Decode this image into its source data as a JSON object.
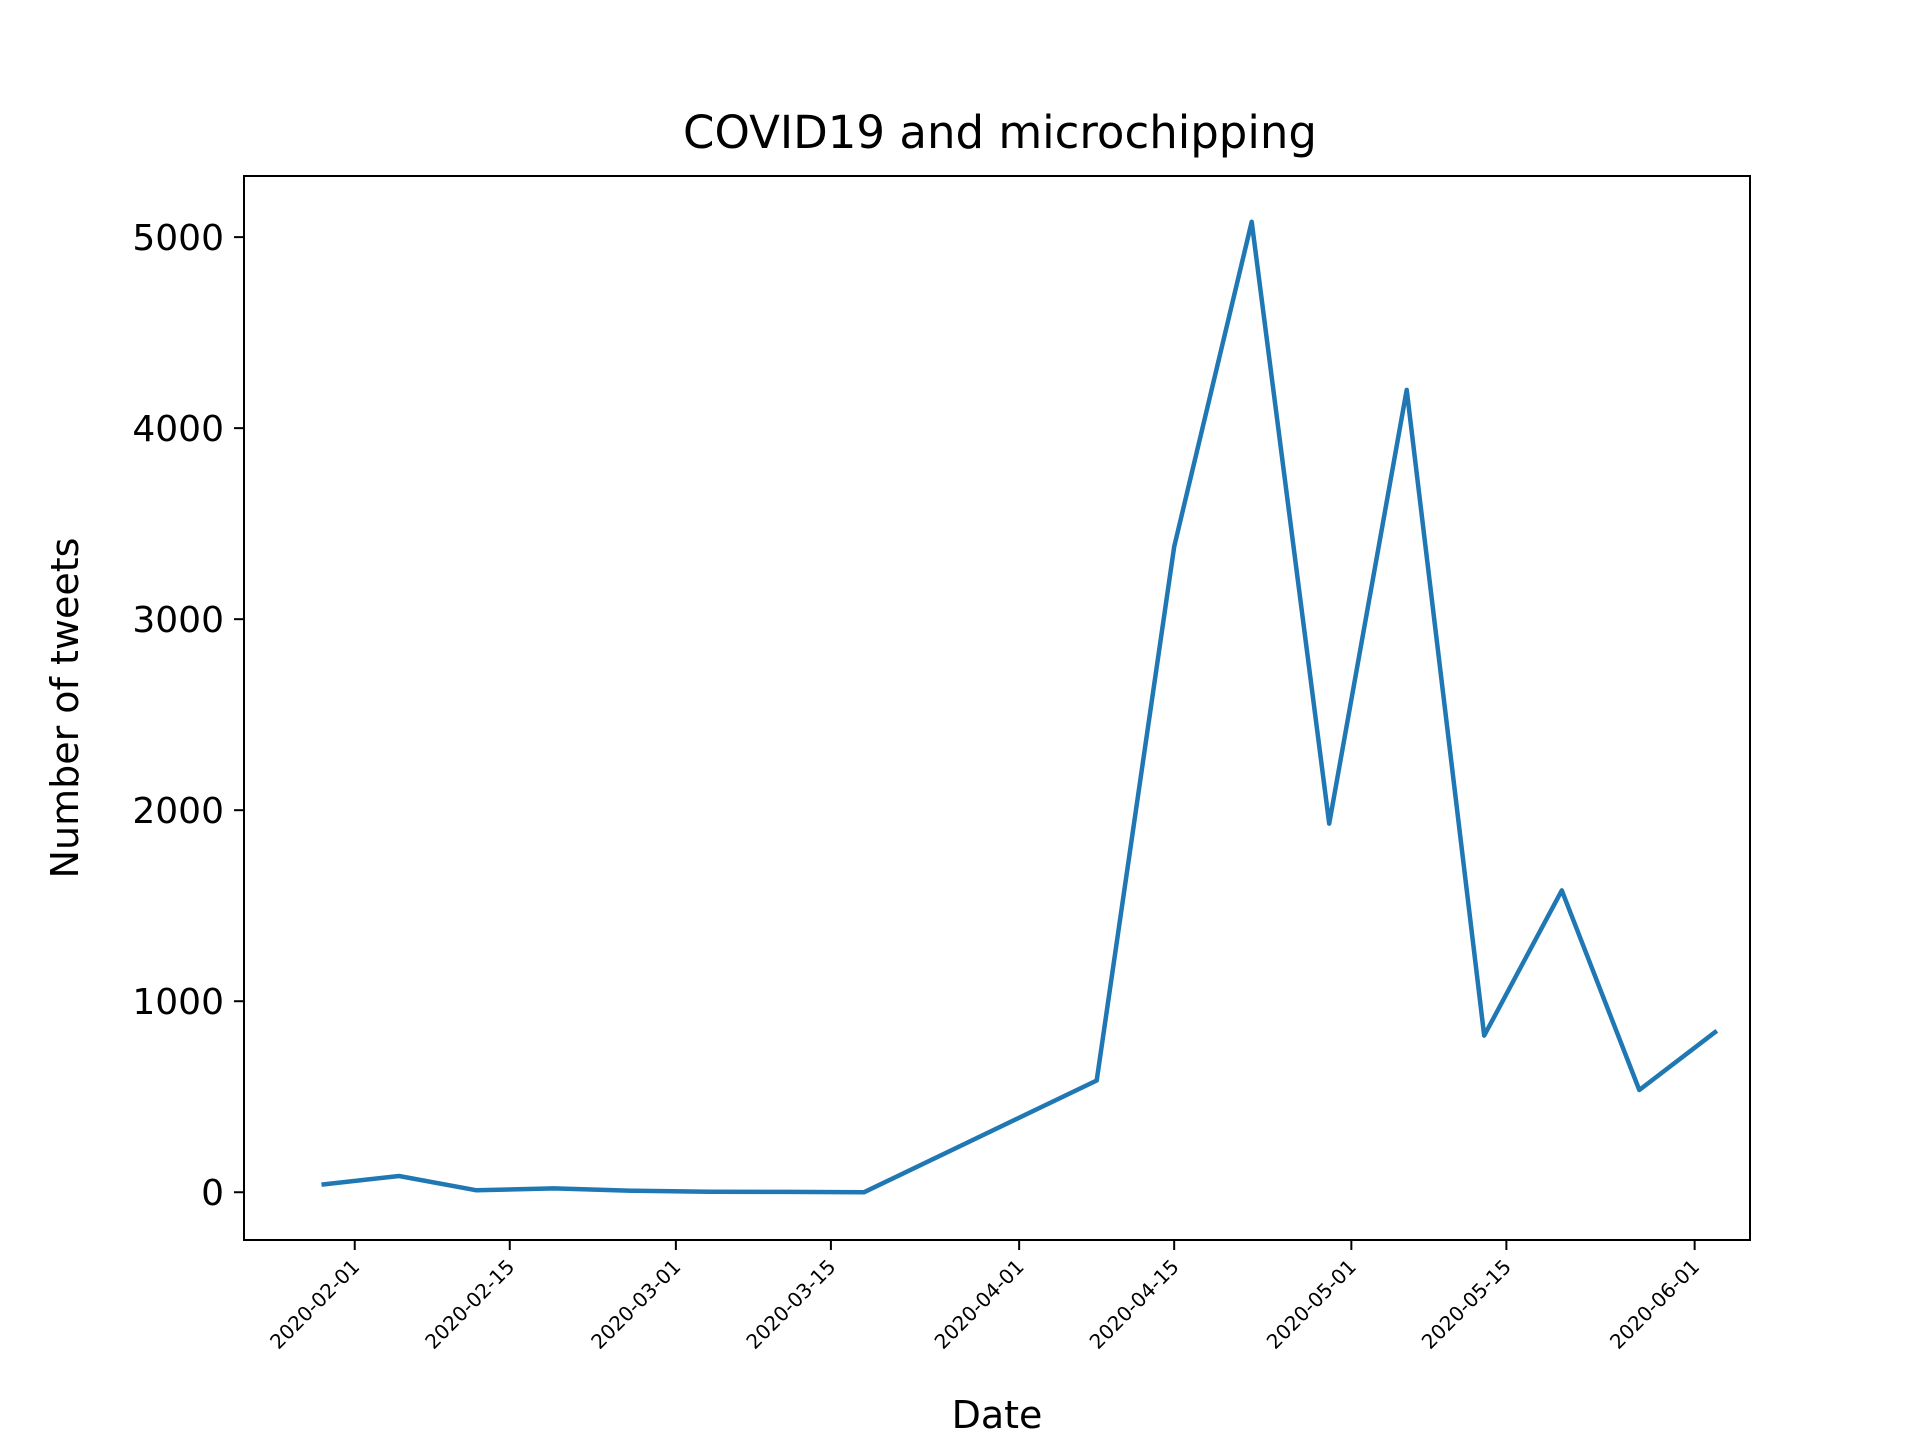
{
  "chart_data": {
    "type": "line",
    "title": "COVID19 and microchipping",
    "xlabel": "Date",
    "ylabel": "Number of tweets",
    "x_type": "date",
    "xlim": [
      "2020-01-22",
      "2020-06-06"
    ],
    "ylim": [
      -250,
      5320
    ],
    "grid": false,
    "legend": false,
    "line_color": "#1f77b4",
    "y_ticks": [
      {
        "value": 0,
        "label": "0"
      },
      {
        "value": 1000,
        "label": "1000"
      },
      {
        "value": 2000,
        "label": "2000"
      },
      {
        "value": 3000,
        "label": "3000"
      },
      {
        "value": 4000,
        "label": "4000"
      },
      {
        "value": 5000,
        "label": "5000"
      }
    ],
    "x_ticks": [
      {
        "value": "2020-02-01",
        "label": "2020-02-01"
      },
      {
        "value": "2020-02-15",
        "label": "2020-02-15"
      },
      {
        "value": "2020-03-01",
        "label": "2020-03-01"
      },
      {
        "value": "2020-03-15",
        "label": "2020-03-15"
      },
      {
        "value": "2020-04-01",
        "label": "2020-04-01"
      },
      {
        "value": "2020-04-15",
        "label": "2020-04-15"
      },
      {
        "value": "2020-05-01",
        "label": "2020-05-01"
      },
      {
        "value": "2020-05-15",
        "label": "2020-05-15"
      },
      {
        "value": "2020-06-01",
        "label": "2020-06-01"
      }
    ],
    "x": [
      "2020-01-29",
      "2020-02-05",
      "2020-02-12",
      "2020-02-19",
      "2020-02-26",
      "2020-03-04",
      "2020-03-11",
      "2020-03-18",
      "2020-04-08",
      "2020-04-15",
      "2020-04-22",
      "2020-04-29",
      "2020-05-06",
      "2020-05-13",
      "2020-05-20",
      "2020-05-27",
      "2020-06-03"
    ],
    "y": [
      40,
      85,
      10,
      20,
      8,
      3,
      2,
      0,
      585,
      3380,
      5080,
      1930,
      4200,
      820,
      1580,
      535,
      845
    ]
  }
}
